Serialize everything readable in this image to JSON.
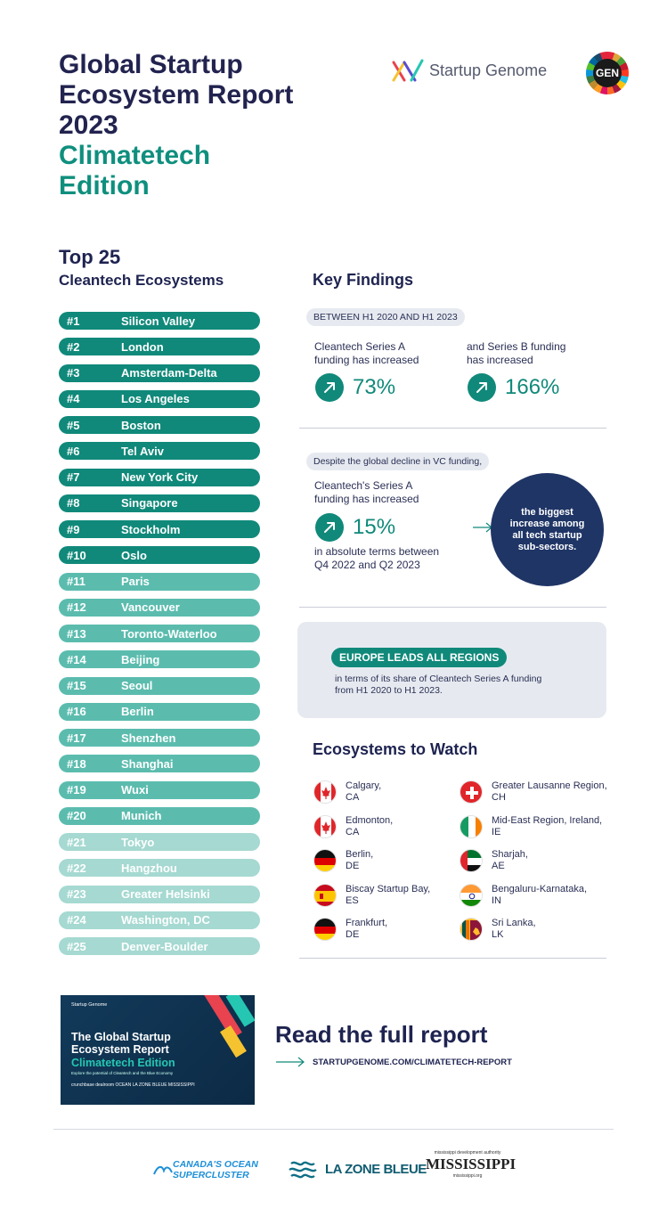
{
  "header": {
    "title_lines": [
      "Global Startup",
      "Ecosystem Report",
      "2023"
    ],
    "subtitle_lines": [
      "Climatetech",
      "Edition"
    ],
    "brand_logo_text": "Startup Genome",
    "gen_logo_text": "GEN"
  },
  "top25": {
    "heading": "Top 25",
    "subheading": "Cleantech Ecosystems",
    "items": [
      {
        "rank": "#1",
        "name": "Silicon Valley"
      },
      {
        "rank": "#2",
        "name": "London"
      },
      {
        "rank": "#3",
        "name": "Amsterdam-Delta"
      },
      {
        "rank": "#4",
        "name": "Los Angeles"
      },
      {
        "rank": "#5",
        "name": "Boston"
      },
      {
        "rank": "#6",
        "name": "Tel Aviv"
      },
      {
        "rank": "#7",
        "name": "New York City"
      },
      {
        "rank": "#8",
        "name": "Singapore"
      },
      {
        "rank": "#9",
        "name": "Stockholm"
      },
      {
        "rank": "#10",
        "name": "Oslo"
      },
      {
        "rank": "#11",
        "name": "Paris"
      },
      {
        "rank": "#12",
        "name": "Vancouver"
      },
      {
        "rank": "#13",
        "name": "Toronto-Waterloo"
      },
      {
        "rank": "#14",
        "name": "Beijing"
      },
      {
        "rank": "#15",
        "name": "Seoul"
      },
      {
        "rank": "#16",
        "name": "Berlin"
      },
      {
        "rank": "#17",
        "name": "Shenzhen"
      },
      {
        "rank": "#18",
        "name": "Shanghai"
      },
      {
        "rank": "#19",
        "name": "Wuxi"
      },
      {
        "rank": "#20",
        "name": "Munich"
      },
      {
        "rank": "#21",
        "name": "Tokyo"
      },
      {
        "rank": "#22",
        "name": "Hangzhou"
      },
      {
        "rank": "#23",
        "name": "Greater Helsinki"
      },
      {
        "rank": "#24",
        "name": "Washington, DC"
      },
      {
        "rank": "#25",
        "name": "Denver-Boulder"
      }
    ]
  },
  "key_findings": {
    "heading": "Key Findings",
    "period_pill": "BETWEEN H1 2020 AND H1 2023",
    "series_a_text_1": "Cleantech Series A",
    "series_a_text_2": "funding has increased",
    "series_a_value": "73%",
    "series_b_text_1": "and Series B funding",
    "series_b_text_2": "has increased",
    "series_b_value": "166%",
    "decline_pill": "Despite the global decline in VC funding,",
    "abs_text_1": "Cleantech's Series A",
    "abs_text_2": "funding has increased",
    "abs_value": "15%",
    "abs_text_3": "in absolute terms between",
    "abs_text_4": "Q4 2022 and Q2 2023",
    "circle_text": "the biggest increase among all tech startup sub-sectors.",
    "europe_pill": "EUROPE LEADS ALL REGIONS",
    "europe_text_1": "in terms of its share of Cleantech Series A funding",
    "europe_text_2": "from H1 2020 to H1 2023."
  },
  "ecosystems_to_watch": {
    "heading": "Ecosystems to Watch",
    "items": [
      {
        "line1": "Calgary,",
        "line2": "CA",
        "flag": "canada"
      },
      {
        "line1": "Greater Lausanne Region,",
        "line2": "CH",
        "flag": "switzerland"
      },
      {
        "line1": "Edmonton,",
        "line2": "CA",
        "flag": "canada"
      },
      {
        "line1": "Mid-East Region, Ireland,",
        "line2": "IE",
        "flag": "ireland"
      },
      {
        "line1": "Berlin,",
        "line2": "DE",
        "flag": "germany"
      },
      {
        "line1": "Sharjah,",
        "line2": "AE",
        "flag": "uae"
      },
      {
        "line1": "Biscay Startup Bay,",
        "line2": "ES",
        "flag": "spain"
      },
      {
        "line1": "Bengaluru-Karnataka,",
        "line2": "IN",
        "flag": "india"
      },
      {
        "line1": "Frankfurt,",
        "line2": "DE",
        "flag": "germany"
      },
      {
        "line1": "Sri Lanka,",
        "line2": "LK",
        "flag": "sri-lanka"
      }
    ]
  },
  "report_cover": {
    "brand": "Startup Genome",
    "title_1": "The Global Startup",
    "title_2": "Ecosystem Report",
    "title_3": "Climatetech Edition",
    "tagline": "Explore the potential of Cleantech and the Blue Economy",
    "partner_logos": "crunchbase   dealroom   OCEAN   LA ZONE BLEUE   MISSISSIPPI"
  },
  "cta": {
    "title": "Read the full report",
    "url": "STARTUPGENOME.COM/CLIMATETECH-REPORT"
  },
  "footer": {
    "canada_1": "CANADA'S OCEAN",
    "canada_2": "SUPERCLUSTER",
    "zone_bleue": "LA ZONE BLEUE",
    "miss_top": "mississippi development authority",
    "miss_main": "MISSISSIPPI",
    "miss_url": "mississippi.org"
  },
  "colors": {
    "navy": "#1e2350",
    "teal": "#10897a",
    "teal_mid": "#5bbcae",
    "teal_light": "#a5d9d1"
  }
}
